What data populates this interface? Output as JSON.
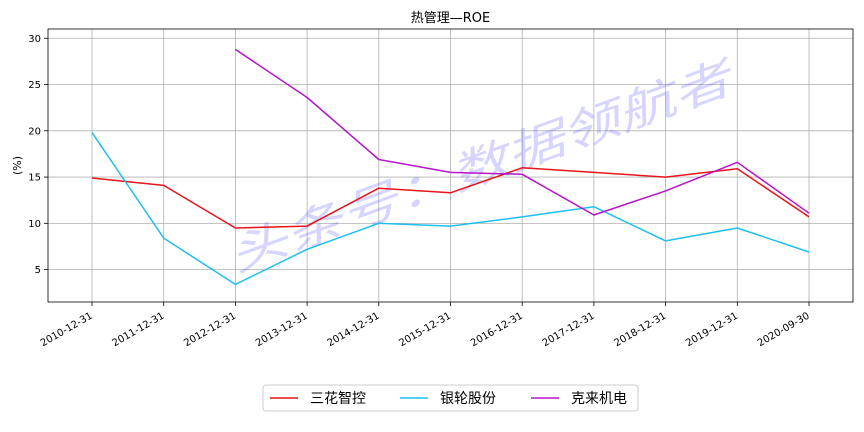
{
  "chart_data": {
    "type": "line",
    "title": "热管理—ROE",
    "xlabel": "",
    "ylabel": "(%)",
    "categories": [
      "2010-12-31",
      "2011-12-31",
      "2012-12-31",
      "2013-12-31",
      "2014-12-31",
      "2015-12-31",
      "2016-12-31",
      "2017-12-31",
      "2018-12-31",
      "2019-12-31",
      "2020-09-30"
    ],
    "ylim": [
      1.5,
      31
    ],
    "yticks": [
      5,
      10,
      15,
      20,
      25,
      30
    ],
    "grid": true,
    "legend_position": "bottom-center",
    "series": [
      {
        "name": "三花智控",
        "color": "#e8141a",
        "values": [
          14.9,
          14.1,
          9.5,
          9.7,
          13.8,
          13.3,
          16.0,
          15.5,
          15.0,
          15.9,
          10.7
        ]
      },
      {
        "name": "银轮股份",
        "color": "#1ebff0",
        "values": [
          19.8,
          8.4,
          3.4,
          7.2,
          10.0,
          9.7,
          10.7,
          11.8,
          8.1,
          9.5,
          6.9
        ]
      },
      {
        "name": "克来机电",
        "color": "#b515c8",
        "values": [
          null,
          null,
          28.8,
          23.6,
          16.9,
          15.5,
          15.3,
          10.9,
          13.5,
          16.6,
          11.1
        ]
      }
    ],
    "watermark": "头条号：数据领航者"
  }
}
